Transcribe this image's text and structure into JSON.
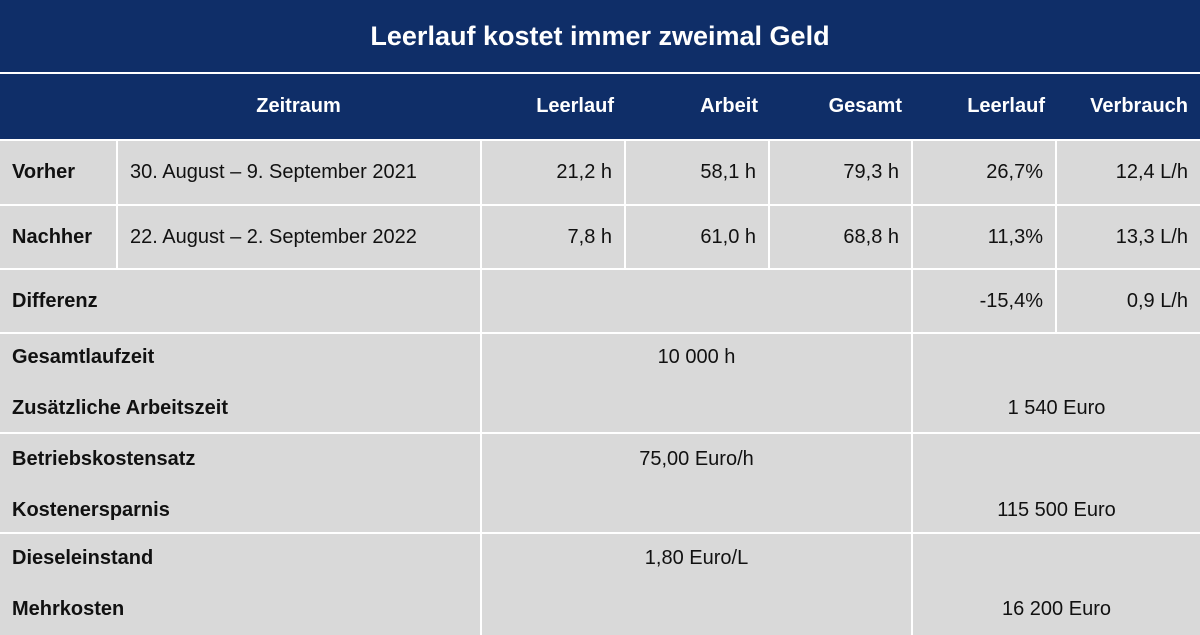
{
  "title": "Leerlauf kostet immer zweimal Geld",
  "header": {
    "zeitraum": "Zeitraum",
    "leerlauf": "Leerlauf",
    "arbeit": "Arbeit",
    "gesamt": "Gesamt",
    "leerlauf_pct": "Leerlauf",
    "verbrauch": "Verbrauch"
  },
  "rows": [
    {
      "label": "Vorher",
      "zeitraum": "30. August – 9. September 2021",
      "leerlauf": "21,2 h",
      "arbeit": "58,1 h",
      "gesamt": "79,3 h",
      "leerlauf_pct": "26,7%",
      "verbrauch": "12,4 L/h"
    },
    {
      "label": "Nachher",
      "zeitraum": "22. August – 2. September 2022",
      "leerlauf": "7,8 h",
      "arbeit": "61,0 h",
      "gesamt": "68,8 h",
      "leerlauf_pct": "11,3%",
      "verbrauch": "13,3 L/h"
    }
  ],
  "differenz": {
    "label": "Differenz",
    "leerlauf_pct": "-15,4%",
    "verbrauch": "0,9 L/h"
  },
  "summary": [
    {
      "label1": "Gesamtlaufzeit",
      "value1": "10 000 h",
      "label2": "Zusätzliche Arbeitszeit",
      "value2": "1 540 Euro"
    },
    {
      "label1": "Betriebskostensatz",
      "value1": "75,00 Euro/h",
      "label2": "Kostenersparnis",
      "value2": "115 500 Euro"
    },
    {
      "label1": "Dieseleinstand",
      "value1": "1,80 Euro/L",
      "label2": "Mehrkosten",
      "value2": "16 200 Euro"
    }
  ],
  "colors": {
    "header_bg": "#0f2e68",
    "cell_bg": "#d9d9d9",
    "grid": "#ffffff"
  }
}
